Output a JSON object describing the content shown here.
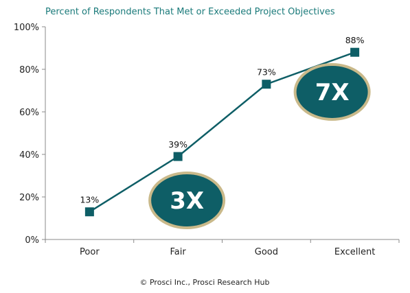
{
  "chart_data": {
    "type": "line",
    "title": "Percent of Respondents That Met or Exceeded Project Objectives",
    "categories": [
      "Poor",
      "Fair",
      "Good",
      "Excellent"
    ],
    "values": [
      13,
      39,
      73,
      88
    ],
    "value_labels": [
      "13%",
      "39%",
      "73%",
      "88%"
    ],
    "ylim": [
      0,
      100
    ],
    "yticks": [
      0,
      20,
      40,
      60,
      80,
      100
    ],
    "ytick_labels": [
      "0%",
      "20%",
      "40%",
      "60%",
      "80%",
      "100%"
    ],
    "xlabel": "",
    "ylabel": "",
    "grid": false,
    "line_color": "#0e5e66",
    "annotations": [
      {
        "text": "3X",
        "near_category": "Fair",
        "fill": "#0e5e66",
        "border": "#c9b98a"
      },
      {
        "text": "7X",
        "near_category": "Excellent",
        "fill": "#0e5e66",
        "border": "#c9b98a"
      }
    ]
  },
  "footer": {
    "source": "© Prosci Inc., Prosci Research Hub"
  },
  "colors": {
    "title": "#1a7a7a",
    "axis": "#888888"
  }
}
